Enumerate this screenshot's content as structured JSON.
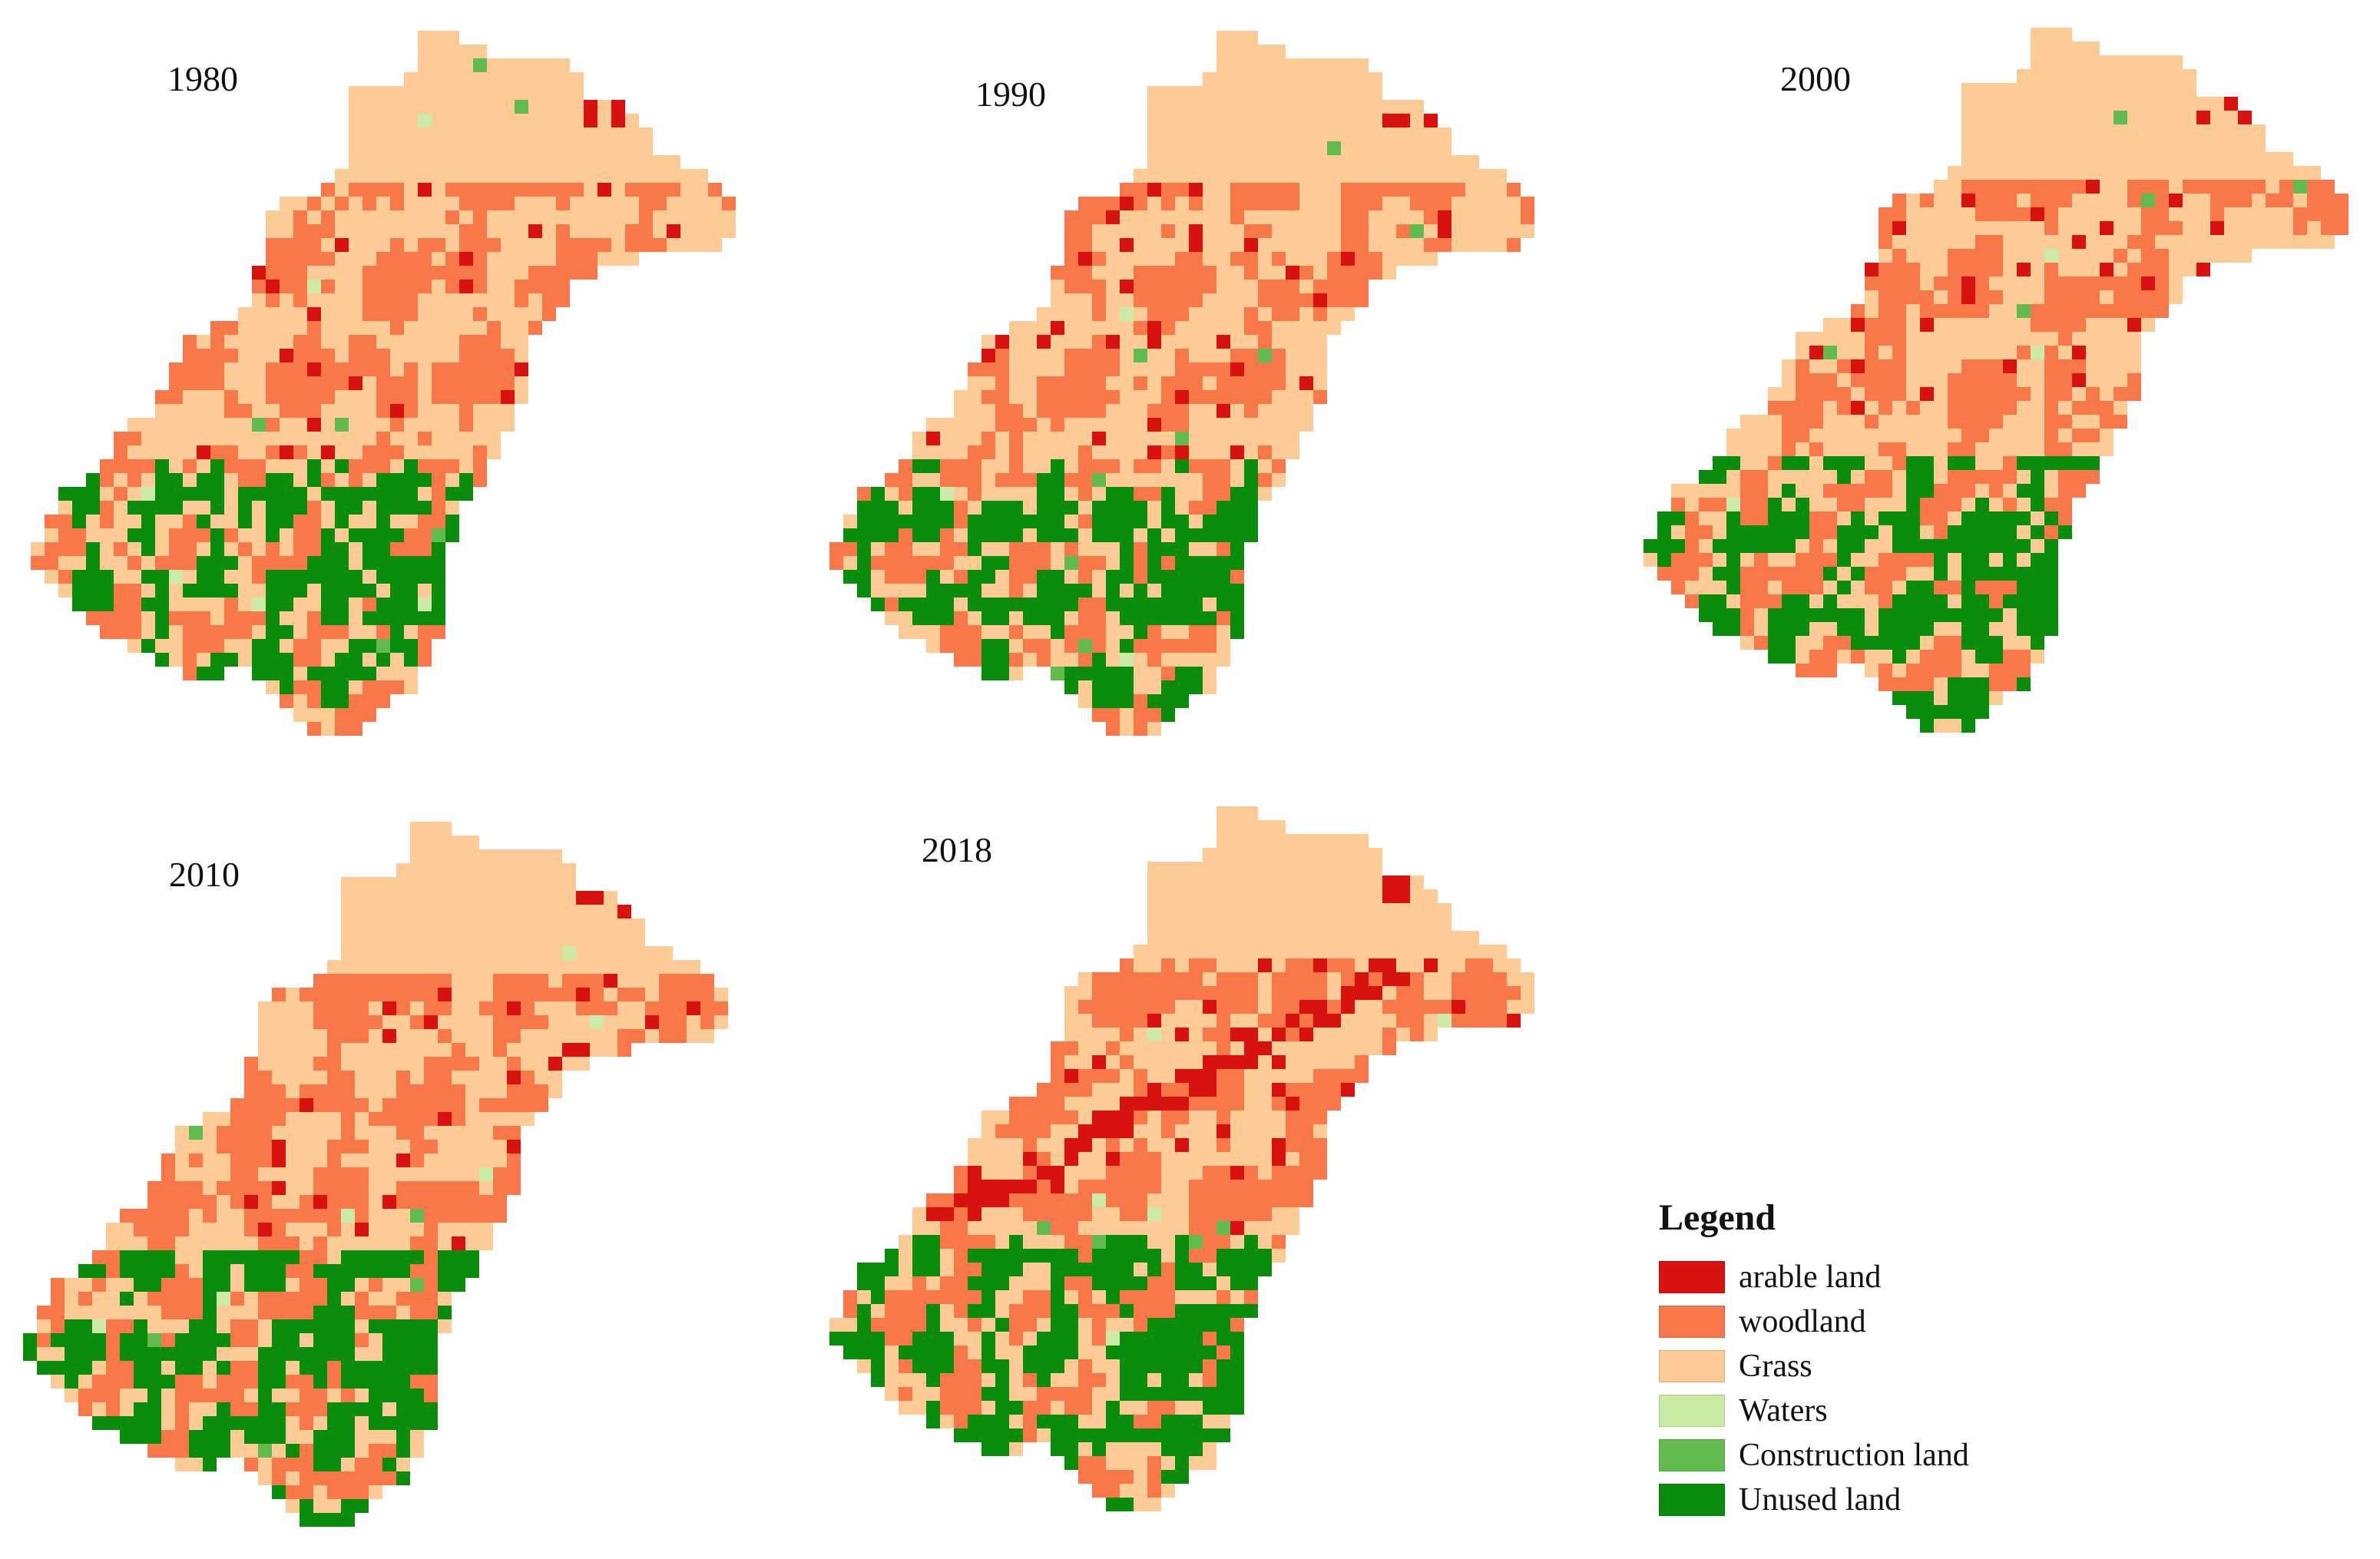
{
  "maps": [
    {
      "id": "1980",
      "year_label": "1980"
    },
    {
      "id": "1990",
      "year_label": "1990"
    },
    {
      "id": "2000",
      "year_label": "2000"
    },
    {
      "id": "2010",
      "year_label": "2010"
    },
    {
      "id": "2018",
      "year_label": "2018"
    }
  ],
  "legend": {
    "title": "Legend",
    "items": [
      {
        "label": "arable land",
        "color": "#d7120f"
      },
      {
        "label": "woodland",
        "color": "#f9784a"
      },
      {
        "label": "Grass",
        "color": "#fdcb96"
      },
      {
        "label": "Waters",
        "color": "#cbeaa5"
      },
      {
        "label": "Construction land",
        "color": "#62bb4e"
      },
      {
        "label": "Unused land",
        "color": "#098b0c"
      }
    ]
  }
}
